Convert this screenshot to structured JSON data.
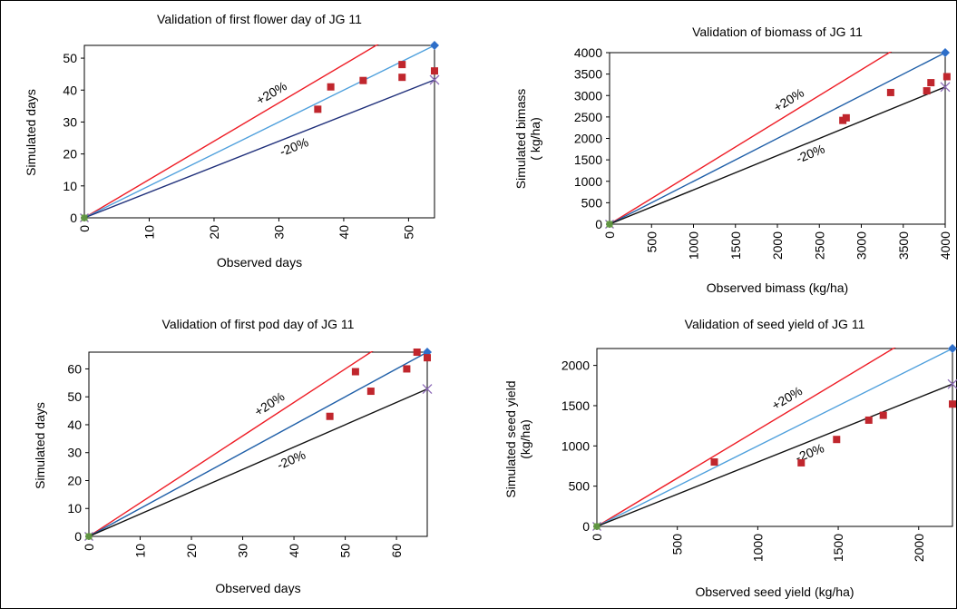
{
  "colors": {
    "plus20": "#ee1c25",
    "equal_light": "#4d9fdc",
    "equal_dark": "#1f5fa8",
    "minus20_navy": "#1f2f7a",
    "minus20_black": "#111111",
    "observed_points": "#c0262d",
    "end_marker": "#2e6fc9",
    "cross_marker": "#8e6bb8",
    "origin_marker": "#5d9a3a"
  },
  "chart_data": [
    {
      "type": "scatter",
      "title": "Validation of first flower day of JG 11",
      "xlabel": "Observed days",
      "ylabel": "Simulated days",
      "xlim": [
        0,
        54
      ],
      "ylim": [
        0,
        54
      ],
      "xticks": [
        0,
        10,
        20,
        30,
        40,
        50
      ],
      "yticks": [
        0,
        10,
        20,
        30,
        40,
        50
      ],
      "line_labels": {
        "plus": "+20%",
        "minus": "-20%"
      },
      "lines": {
        "equal_color": "equal_light",
        "minus_color": "minus20_navy"
      },
      "points": [
        [
          36,
          34
        ],
        [
          38,
          41
        ],
        [
          43,
          43
        ],
        [
          49,
          48
        ],
        [
          49,
          44
        ],
        [
          54,
          46
        ]
      ]
    },
    {
      "type": "scatter",
      "title": "Validation of  biomass  of JG 11",
      "xlabel": "Observed bimass (kg/ha)",
      "ylabel": "Simulated bimass ( kg/ha)",
      "xlim": [
        0,
        4000
      ],
      "ylim": [
        0,
        4000
      ],
      "xticks": [
        0,
        500,
        1000,
        1500,
        2000,
        2500,
        3000,
        3500,
        4000
      ],
      "yticks": [
        0,
        500,
        1000,
        1500,
        2000,
        2500,
        3000,
        3500,
        4000
      ],
      "line_labels": {
        "plus": "+20%",
        "minus": "-20%"
      },
      "lines": {
        "equal_color": "equal_dark",
        "minus_color": "minus20_black"
      },
      "points": [
        [
          2780,
          2420
        ],
        [
          2820,
          2480
        ],
        [
          3350,
          3070
        ],
        [
          3780,
          3110
        ],
        [
          3830,
          3300
        ],
        [
          4020,
          3440
        ]
      ]
    },
    {
      "type": "scatter",
      "title": "Validation of first pod day of JG 11",
      "xlabel": "Observed days",
      "ylabel": "Simulated days",
      "xlim": [
        0,
        66
      ],
      "ylim": [
        0,
        66
      ],
      "xticks": [
        0,
        10,
        20,
        30,
        40,
        50,
        60
      ],
      "yticks": [
        0,
        10,
        20,
        30,
        40,
        50,
        60
      ],
      "line_labels": {
        "plus": "+20%",
        "minus": "-20%"
      },
      "lines": {
        "equal_color": "equal_dark",
        "minus_color": "minus20_black"
      },
      "points": [
        [
          47,
          43
        ],
        [
          52,
          59
        ],
        [
          55,
          52
        ],
        [
          62,
          60
        ],
        [
          64,
          66
        ],
        [
          66,
          64
        ]
      ]
    },
    {
      "type": "scatter",
      "title": "Validation of seed yield of JG 11",
      "xlabel": "Observed seed yield (kg/ha)",
      "ylabel": "Simulated seed  yield (kg/ha)",
      "xlim": [
        0,
        2210
      ],
      "ylim": [
        0,
        2210
      ],
      "xticks": [
        0,
        500,
        1000,
        1500,
        2000
      ],
      "yticks": [
        0,
        500,
        1000,
        1500,
        2000
      ],
      "line_labels": {
        "plus": "+20%",
        "minus": "-20%"
      },
      "lines": {
        "equal_color": "equal_light",
        "minus_color": "minus20_black"
      },
      "points": [
        [
          730,
          800
        ],
        [
          1270,
          790
        ],
        [
          1490,
          1080
        ],
        [
          1690,
          1320
        ],
        [
          1780,
          1380
        ],
        [
          2210,
          1520
        ]
      ]
    }
  ]
}
